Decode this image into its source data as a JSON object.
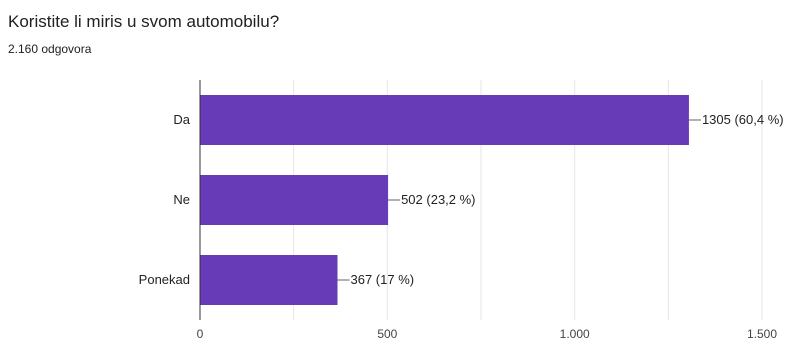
{
  "header": {
    "title": "Koristite li miris u svom automobilu?",
    "responses": "2.160 odgovora"
  },
  "chart_data": {
    "type": "bar",
    "orientation": "horizontal",
    "categories": [
      "Da",
      "Ne",
      "Ponekad"
    ],
    "values": [
      1305,
      502,
      367
    ],
    "data_labels": [
      "1305 (60,4 %)",
      "502 (23,2 %)",
      "367 (17 %)"
    ],
    "xlim": [
      0,
      1500
    ],
    "x_ticks": [
      0,
      500,
      1000,
      1500
    ],
    "x_tick_labels": [
      "0",
      "500",
      "1.000",
      "1.500"
    ],
    "grid": true,
    "bar_color": "#673ab7"
  }
}
